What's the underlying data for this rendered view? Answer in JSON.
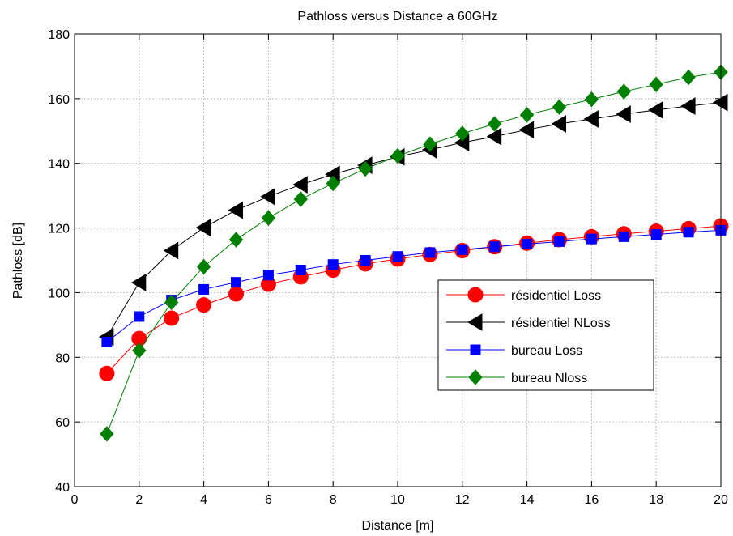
{
  "chart_data": {
    "type": "line",
    "title": "Pathloss versus Distance a 60GHz",
    "xlabel": "Distance [m]",
    "ylabel": "Pathloss [dB]",
    "xlim": [
      0,
      20
    ],
    "ylim": [
      40,
      180
    ],
    "xticks": [
      0,
      2,
      4,
      6,
      8,
      10,
      12,
      14,
      16,
      18,
      20
    ],
    "yticks": [
      40,
      60,
      80,
      100,
      120,
      140,
      160,
      180
    ],
    "grid": true,
    "legend_position": "right",
    "x": [
      1,
      2,
      3,
      4,
      5,
      6,
      7,
      8,
      9,
      10,
      11,
      12,
      13,
      14,
      15,
      16,
      17,
      18,
      19,
      20
    ],
    "series": [
      {
        "name": "résidentiel Loss",
        "color": "#ff0000",
        "marker": "circle",
        "values": [
          75,
          85.8,
          92.1,
          96.2,
          99.6,
          102.6,
          104.9,
          107,
          108.9,
          110.4,
          111.8,
          113,
          114.2,
          115.3,
          116.4,
          117.3,
          118.2,
          119,
          119.8,
          120.6
        ]
      },
      {
        "name": "résidentiel NLoss",
        "color": "#000000",
        "marker": "triangle-left",
        "values": [
          86.3,
          103.1,
          113,
          120.1,
          125.5,
          129.7,
          133.4,
          136.6,
          139.4,
          142,
          144.2,
          146.4,
          148.3,
          150.4,
          152.2,
          153.7,
          155.2,
          156.5,
          157.7,
          158.8
        ]
      },
      {
        "name": "bureau Loss",
        "color": "#0000ff",
        "marker": "square",
        "values": [
          84.7,
          92.6,
          97.7,
          101,
          103.2,
          105.4,
          107,
          108.7,
          110,
          111.2,
          112.4,
          113.3,
          114.2,
          115,
          115.8,
          116.6,
          117.3,
          118,
          118.7,
          119.3
        ]
      },
      {
        "name": "bureau Nloss",
        "color": "#008000",
        "marker": "diamond",
        "values": [
          56.3,
          82.1,
          97,
          108,
          116.4,
          123.1,
          128.9,
          133.8,
          138.3,
          142.3,
          145.9,
          149.2,
          152.2,
          155,
          157.4,
          159.8,
          162.2,
          164.4,
          166.6,
          168.2
        ]
      }
    ]
  }
}
